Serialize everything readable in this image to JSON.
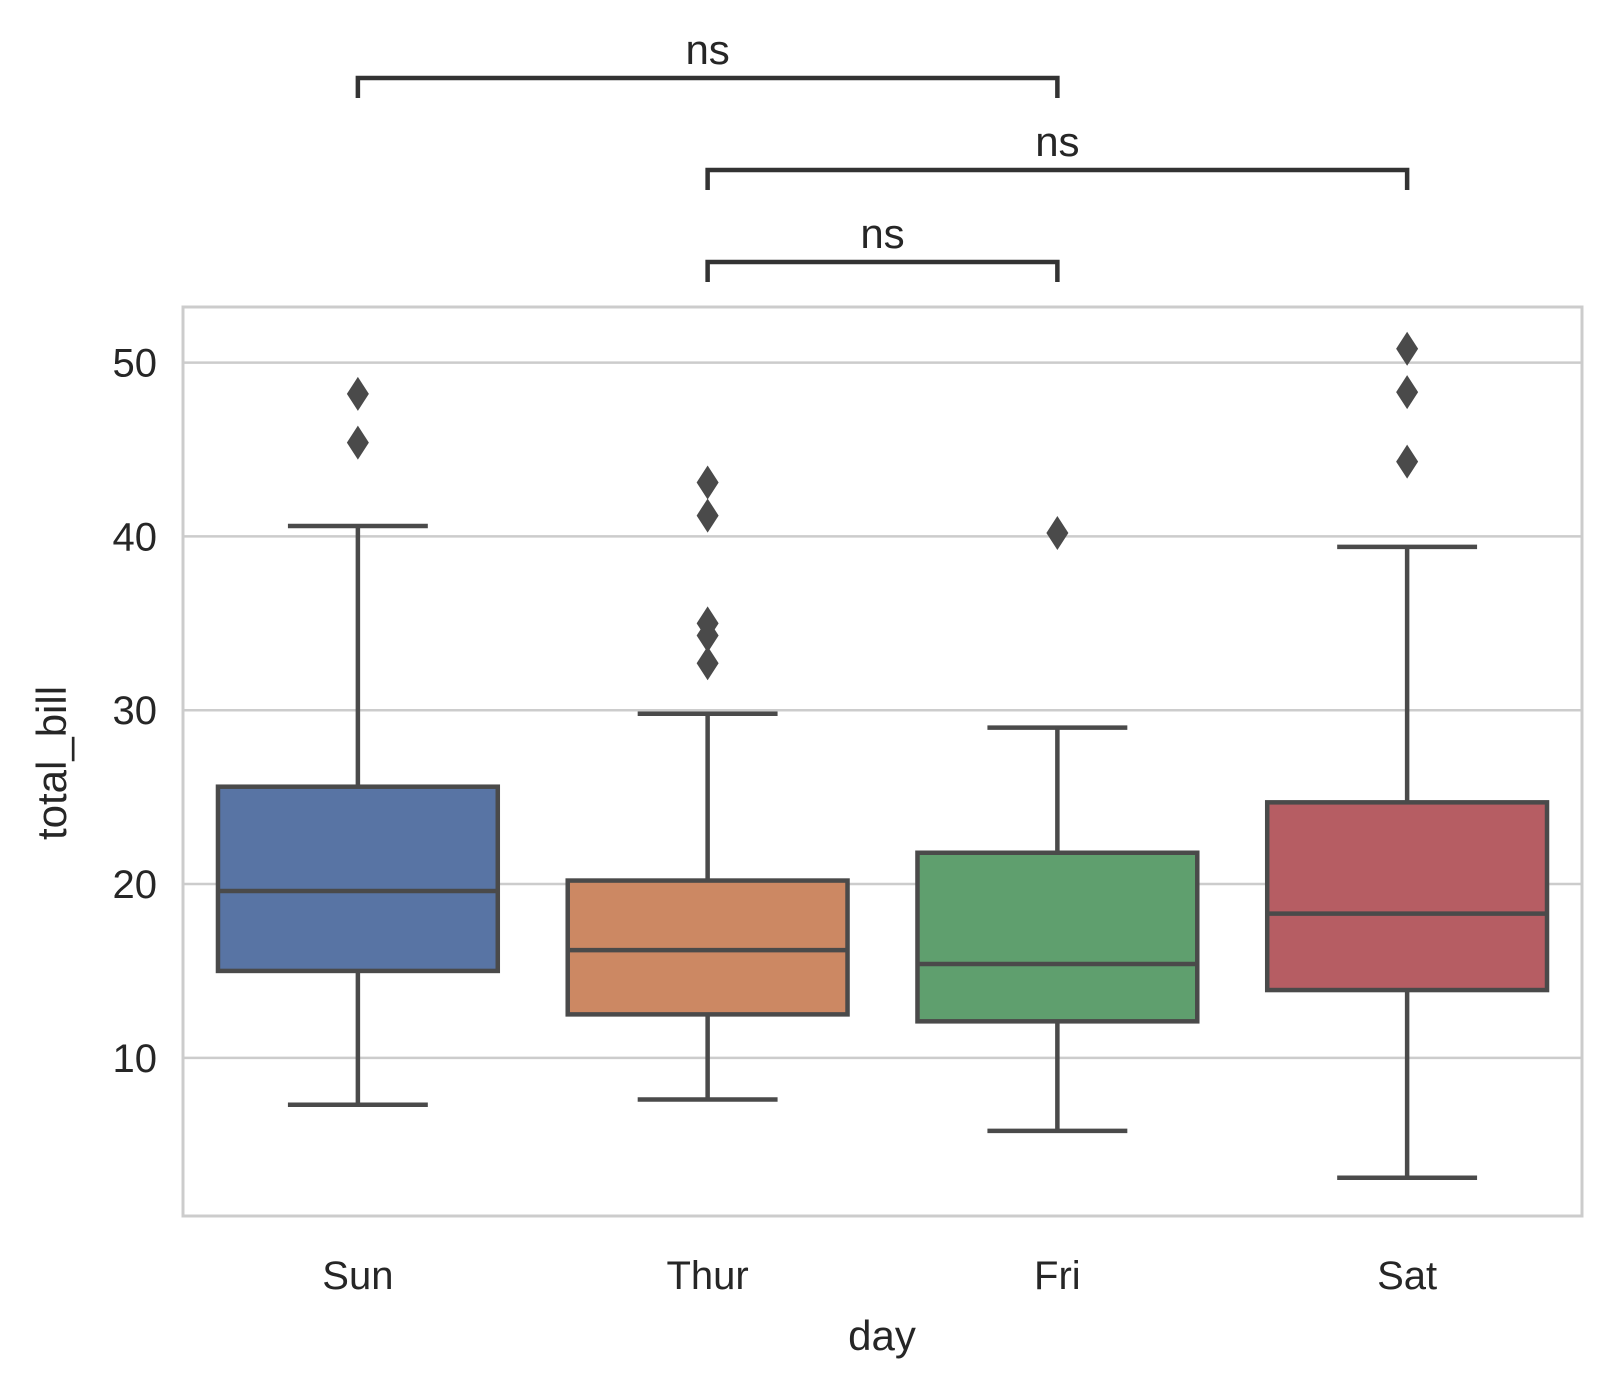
{
  "chart_data": {
    "type": "box",
    "xlabel": "day",
    "ylabel": "total_bill",
    "ylim": [
      0.9,
      53.2
    ],
    "yticks": [
      10,
      20,
      30,
      40,
      50
    ],
    "grid": "horizontal",
    "categories": [
      "Sun",
      "Thur",
      "Fri",
      "Sat"
    ],
    "boxes": [
      {
        "category": "Sun",
        "color": "#5874a4",
        "q1": 15.0,
        "median": 19.6,
        "q3": 25.6,
        "whisker_low": 7.3,
        "whisker_high": 40.6,
        "outliers": [
          45.4,
          48.2
        ]
      },
      {
        "category": "Thur",
        "color": "#cc8863",
        "q1": 12.5,
        "median": 16.2,
        "q3": 20.2,
        "whisker_low": 7.6,
        "whisker_high": 29.8,
        "outliers": [
          32.7,
          34.3,
          35.0,
          41.2,
          43.1
        ]
      },
      {
        "category": "Fri",
        "color": "#5f9f6e",
        "q1": 12.1,
        "median": 15.4,
        "q3": 21.8,
        "whisker_low": 5.8,
        "whisker_high": 29.0,
        "outliers": [
          40.2
        ]
      },
      {
        "category": "Sat",
        "color": "#b65d63",
        "q1": 13.9,
        "median": 18.3,
        "q3": 24.7,
        "whisker_low": 3.1,
        "whisker_high": 39.4,
        "outliers": [
          44.3,
          48.3,
          50.8
        ]
      }
    ],
    "annotations": [
      {
        "from": "Thur",
        "to": "Fri",
        "label": "ns",
        "level": 1
      },
      {
        "from": "Thur",
        "to": "Sat",
        "label": "ns",
        "level": 2
      },
      {
        "from": "Sun",
        "to": "Fri",
        "label": "ns",
        "level": 3
      }
    ],
    "style": {
      "edge_color": "#4a4a4a",
      "grid_color": "#cccccc",
      "frame_color": "#cccccc"
    }
  }
}
